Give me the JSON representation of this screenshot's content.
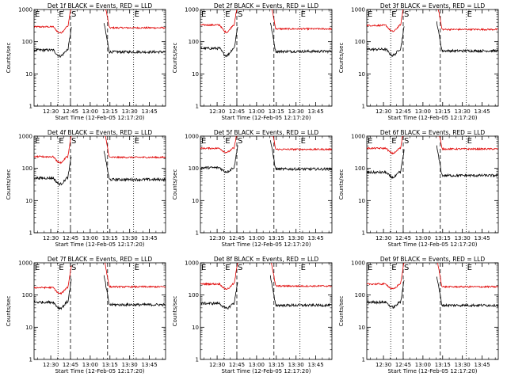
{
  "chart_data": {
    "type": "line",
    "xlabel": "Start Time (12-Feb-05 12:17:20)",
    "ylabel": "Counts/sec",
    "x_ticks": [
      "12:30",
      "12:45",
      "13:00",
      "13:15",
      "13:30",
      "13:45"
    ],
    "x_tick_minutes": [
      30,
      45,
      60,
      75,
      90,
      105
    ],
    "x_start_minutes": 17.3,
    "x_end_minutes": 117.3,
    "y_scale": "log",
    "ylim": [
      1,
      1000
    ],
    "y_ticks": [
      "1",
      "10",
      "100",
      "1000"
    ],
    "y_tick_values": [
      1,
      10,
      100,
      1000
    ],
    "markers": [
      {
        "label": "E",
        "minute": 17.3,
        "style": "dotted"
      },
      {
        "label": "E",
        "minute": 35.5,
        "style": "dotted"
      },
      {
        "label": "S",
        "minute": 45.0,
        "style": "dashed"
      },
      {
        "label": "",
        "minute": 73.2,
        "style": "dashed"
      },
      {
        "label": "E",
        "minute": 93.0,
        "style": "dotted"
      }
    ],
    "gap_minutes": [
      46.0,
      70.5
    ],
    "series_colors": {
      "events": "#000000",
      "lld": "#e00000"
    },
    "panels": [
      {
        "title": "Det 1f BLACK = Events, RED = LLD",
        "events_pre": 55,
        "events_post": 48,
        "lld_pre": 290,
        "lld_post": 270,
        "pre_dip": 0.65
      },
      {
        "title": "Det 2f BLACK = Events, RED = LLD",
        "events_pre": 62,
        "events_post": 50,
        "lld_pre": 330,
        "lld_post": 250,
        "pre_dip": 0.6
      },
      {
        "title": "Det 3f BLACK = Events, RED = LLD",
        "events_pre": 58,
        "events_post": 52,
        "lld_pre": 320,
        "lld_post": 240,
        "pre_dip": 0.65
      },
      {
        "title": "Det 4f BLACK = Events, RED = LLD",
        "events_pre": 50,
        "events_post": 45,
        "lld_pre": 230,
        "lld_post": 220,
        "pre_dip": 0.65
      },
      {
        "title": "Det 5f BLACK = Events, RED = LLD",
        "events_pre": 105,
        "events_post": 95,
        "lld_pre": 420,
        "lld_post": 390,
        "pre_dip": 0.75
      },
      {
        "title": "Det 6f BLACK = Events, RED = LLD",
        "events_pre": 75,
        "events_post": 60,
        "lld_pre": 420,
        "lld_post": 400,
        "pre_dip": 0.7
      },
      {
        "title": "Det 7f BLACK = Events, RED = LLD",
        "events_pre": 60,
        "events_post": 50,
        "lld_pre": 170,
        "lld_post": 180,
        "pre_dip": 0.65
      },
      {
        "title": "Det 8f BLACK = Events, RED = LLD",
        "events_pre": 55,
        "events_post": 48,
        "lld_pre": 220,
        "lld_post": 190,
        "pre_dip": 0.7
      },
      {
        "title": "Det 9f BLACK = Events, RED = LLD",
        "events_pre": 60,
        "events_post": 48,
        "lld_pre": 220,
        "lld_post": 180,
        "pre_dip": 0.7
      }
    ]
  }
}
